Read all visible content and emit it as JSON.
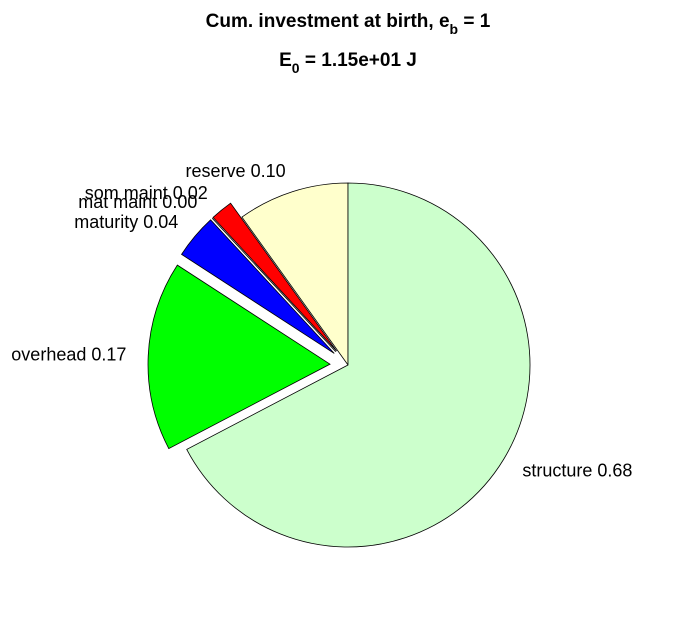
{
  "chart_data": {
    "type": "pie",
    "title": [
      "Cum. investment at birth, e",
      "b",
      " = 1"
    ],
    "subtitle": [
      "E",
      "0",
      " = 1.15e+01 J"
    ],
    "values": [
      0.1,
      0.02,
      0.0,
      0.04,
      0.17,
      0.68
    ],
    "value_labels": [
      "reserve 0.10",
      "som maint 0.02",
      "mat maint 0.00",
      "maturity 0.04",
      "overhead 0.17",
      "structure 0.68"
    ],
    "colors": [
      "#ffffcc",
      "#ff0000",
      "#ff00ff",
      "#0000ff",
      "#00ff00",
      "#ccffcc"
    ],
    "explode": [
      0,
      1,
      1,
      1,
      1,
      0
    ]
  }
}
